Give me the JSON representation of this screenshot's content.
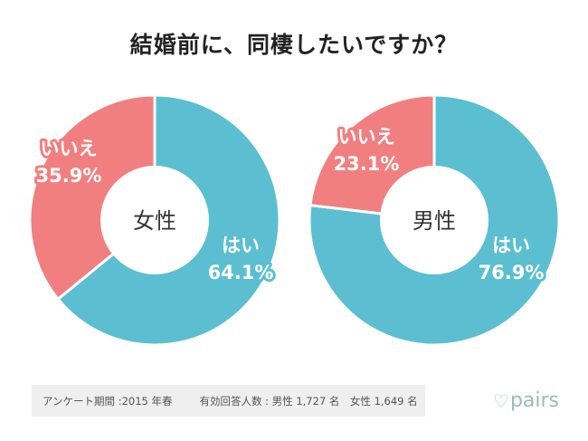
{
  "title": "結婚前に、同棲したいですか？",
  "chart_data": [
    {
      "type": "pie",
      "name": "女性",
      "center_label": "女性",
      "categories": [
        "はい",
        "いいえ"
      ],
      "values": [
        64.1,
        35.9
      ],
      "labels": [
        "64.1%",
        "35.9%"
      ]
    },
    {
      "type": "pie",
      "name": "男性",
      "center_label": "男性",
      "categories": [
        "はい",
        "いいえ"
      ],
      "values": [
        76.9,
        23.1
      ],
      "labels": [
        "76.9%",
        "23.1%"
      ]
    }
  ],
  "colors": {
    "yes": "#5bbfd1",
    "no": "#f17f7f"
  },
  "footer": {
    "period": "アンケート期間 :2015 年春",
    "respondents": "有効回答人数 : 男性 1,727 名　女性 1,649 名"
  },
  "logo": "pairs"
}
